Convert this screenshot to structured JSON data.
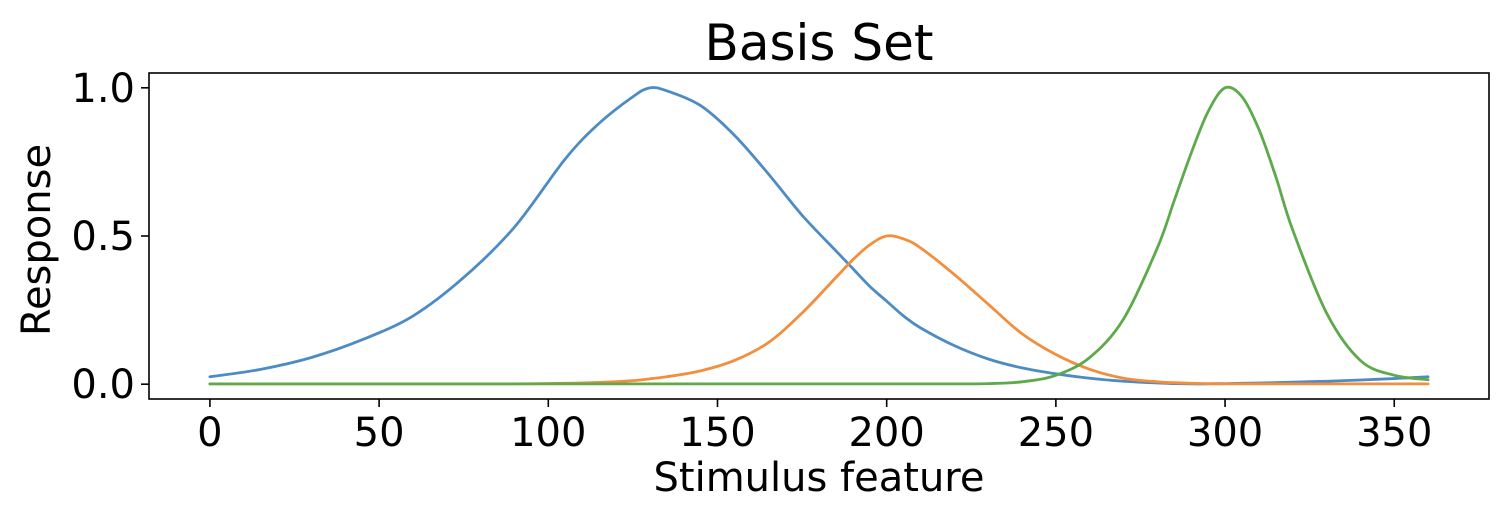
{
  "chart_data": {
    "type": "line",
    "title": "Basis Set",
    "xlabel": "Stimulus feature",
    "ylabel": "Response",
    "xlim": [
      -18,
      378
    ],
    "ylim": [
      -0.05,
      1.05
    ],
    "xticks": [
      0,
      50,
      100,
      150,
      200,
      250,
      300,
      350
    ],
    "xtick_labels": [
      "0",
      "50",
      "100",
      "150",
      "200",
      "250",
      "300",
      "350"
    ],
    "yticks": [
      0.0,
      0.5,
      1.0
    ],
    "ytick_labels": [
      "0.0",
      "0.5",
      "1.0"
    ],
    "grid": false,
    "legend": "none",
    "x": [
      0,
      15,
      30,
      45,
      60,
      75,
      90,
      105,
      115,
      125,
      130,
      135,
      145,
      155,
      165,
      175,
      185,
      190,
      195,
      200,
      205,
      210,
      220,
      230,
      240,
      250,
      260,
      270,
      280,
      285,
      290,
      295,
      300,
      305,
      310,
      315,
      320,
      330,
      340,
      350,
      360
    ],
    "series": [
      {
        "color": "#4c8bc4",
        "values": [
          0.025,
          0.05,
          0.09,
          0.15,
          0.23,
          0.36,
          0.53,
          0.76,
          0.88,
          0.97,
          1.0,
          0.99,
          0.94,
          0.84,
          0.71,
          0.57,
          0.45,
          0.39,
          0.33,
          0.28,
          0.23,
          0.19,
          0.13,
          0.085,
          0.055,
          0.035,
          0.02,
          0.01,
          0.004,
          0.002,
          0.001,
          0.001,
          0.002,
          0.003,
          0.004,
          0.005,
          0.007,
          0.01,
          0.014,
          0.019,
          0.025
        ]
      },
      {
        "color": "#f28e3c",
        "values": [
          0.001,
          0.001,
          0.001,
          0.001,
          0.001,
          0.001,
          0.001,
          0.003,
          0.006,
          0.012,
          0.018,
          0.025,
          0.045,
          0.08,
          0.14,
          0.24,
          0.36,
          0.42,
          0.47,
          0.5,
          0.49,
          0.46,
          0.37,
          0.27,
          0.17,
          0.1,
          0.05,
          0.02,
          0.008,
          0.005,
          0.003,
          0.002,
          0.001,
          0.001,
          0.001,
          0.001,
          0.001,
          0.001,
          0.001,
          0.001,
          0.001
        ]
      },
      {
        "color": "#5caa4a",
        "values": [
          0.001,
          0.001,
          0.001,
          0.001,
          0.001,
          0.001,
          0.001,
          0.001,
          0.001,
          0.001,
          0.001,
          0.001,
          0.001,
          0.001,
          0.001,
          0.001,
          0.001,
          0.001,
          0.001,
          0.001,
          0.001,
          0.001,
          0.001,
          0.002,
          0.008,
          0.03,
          0.09,
          0.22,
          0.46,
          0.62,
          0.78,
          0.92,
          1.0,
          0.97,
          0.86,
          0.7,
          0.52,
          0.24,
          0.08,
          0.03,
          0.015
        ]
      }
    ]
  }
}
